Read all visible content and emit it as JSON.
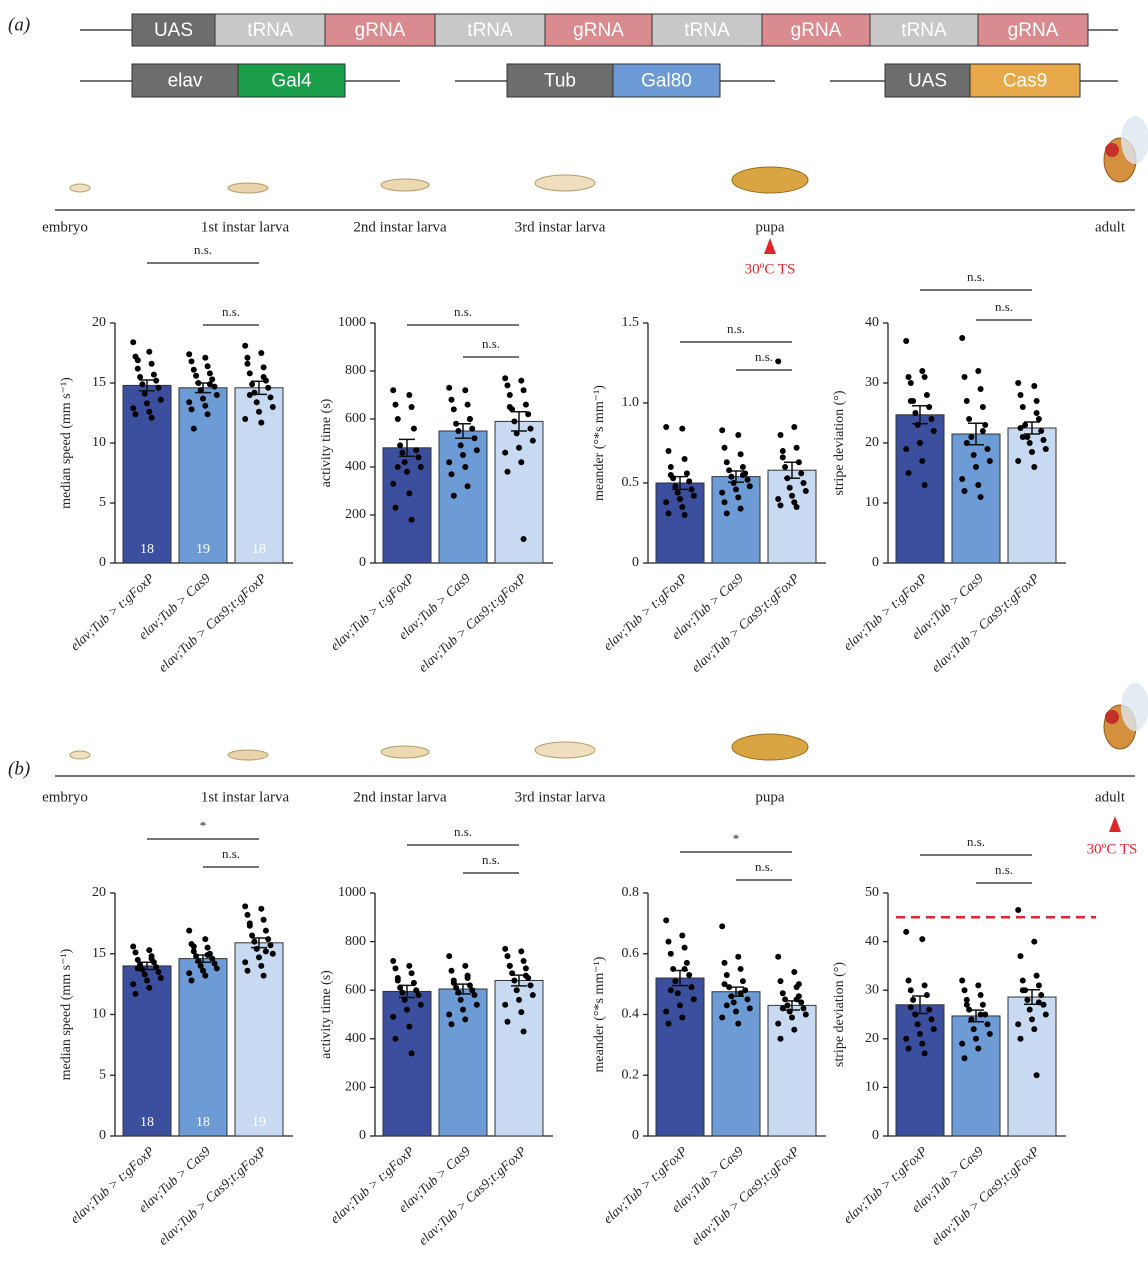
{
  "panel_labels": [
    "(a)",
    "(b)"
  ],
  "constructs": {
    "guide": [
      "UAS",
      "tRNA",
      "gRNA",
      "tRNA",
      "gRNA",
      "tRNA",
      "gRNA",
      "tRNA",
      "gRNA"
    ],
    "driver": [
      "elav",
      "Gal4"
    ],
    "repressor": [
      "Tub",
      "Gal80"
    ],
    "cas": [
      "UAS",
      "Cas9"
    ]
  },
  "timelines": [
    {
      "stages": [
        "embryo",
        "1st instar larva",
        "2nd instar larva",
        "3rd instar larva",
        "pupa",
        "adult"
      ],
      "shift": "30ºC TS"
    },
    {
      "stages": [
        "embryo",
        "1st instar larva",
        "2nd instar larva",
        "3rd instar larva",
        "pupa",
        "adult"
      ],
      "shift": "30ºC TS"
    }
  ],
  "chart_data": [
    {
      "type": "bar",
      "ylabel": "median speed (mm s⁻¹)",
      "categories": [
        "elav;Tub > t:gFoxP",
        "elav;Tub > Cas9",
        "elav;Tub > Cas9;t:gFoxP"
      ],
      "colors": [
        "#3b4f9e",
        "#6c9bd5",
        "#c8daf1"
      ],
      "values": [
        14.8,
        14.6,
        14.6
      ],
      "errors": [
        0.45,
        0.4,
        0.55
      ],
      "counts": [
        18,
        19,
        18
      ],
      "points": [
        [
          18.4,
          17.6,
          17.2,
          16.6,
          16.9,
          15.7,
          15.5,
          15.2,
          14.9,
          14.6,
          14.1,
          13.6,
          13.3,
          12.9,
          12.6,
          12.4,
          12.1,
          16.2
        ],
        [
          17.4,
          17.1,
          16.8,
          16.4,
          16.1,
          15.8,
          15.6,
          15.3,
          15.0,
          14.7,
          14.4,
          14.0,
          13.7,
          13.4,
          13.1,
          12.8,
          12.4,
          11.2,
          14.9
        ],
        [
          18.1,
          17.5,
          17.1,
          16.3,
          15.8,
          15.2,
          14.9,
          14.6,
          14.2,
          13.8,
          13.4,
          13.0,
          12.6,
          12.0,
          11.7,
          16.6,
          15.5,
          14.0
        ]
      ],
      "ylim": [
        0,
        20
      ],
      "yticks": [
        0,
        5,
        10,
        15,
        20
      ],
      "significance": [
        "n.s.",
        "n.s."
      ]
    },
    {
      "type": "bar",
      "ylabel": "activity time (s)",
      "categories": [
        "elav;Tub > t:gFoxP",
        "elav;Tub > Cas9",
        "elav;Tub > Cas9;t:gFoxP"
      ],
      "colors": [
        "#3b4f9e",
        "#6c9bd5",
        "#c8daf1"
      ],
      "values": [
        480,
        550,
        590
      ],
      "errors": [
        35,
        30,
        40
      ],
      "points": [
        [
          720,
          700,
          660,
          650,
          600,
          560,
          490,
          470,
          460,
          440,
          420,
          400,
          380,
          330,
          290,
          230,
          180,
          400
        ],
        [
          730,
          720,
          680,
          660,
          640,
          600,
          580,
          560,
          550,
          520,
          490,
          470,
          450,
          420,
          400,
          370,
          320,
          280,
          600
        ],
        [
          770,
          760,
          740,
          720,
          700,
          660,
          640,
          620,
          590,
          560,
          540,
          510,
          480,
          460,
          420,
          380,
          100,
          650
        ]
      ],
      "ylim": [
        0,
        1000
      ],
      "yticks": [
        0,
        200,
        400,
        600,
        800,
        1000
      ],
      "significance": [
        "n.s.",
        "n.s."
      ]
    },
    {
      "type": "bar",
      "ylabel": "meander (°*s mm⁻¹)",
      "categories": [
        "elav;Tub > t:gFoxP",
        "elav;Tub > Cas9",
        "elav;Tub > Cas9;t:gFoxP"
      ],
      "colors": [
        "#3b4f9e",
        "#6c9bd5",
        "#c8daf1"
      ],
      "values": [
        0.5,
        0.54,
        0.58
      ],
      "errors": [
        0.04,
        0.035,
        0.05
      ],
      "points": [
        [
          0.85,
          0.84,
          0.7,
          0.65,
          0.6,
          0.56,
          0.53,
          0.51,
          0.48,
          0.46,
          0.44,
          0.42,
          0.4,
          0.38,
          0.35,
          0.31,
          0.3,
          0.55
        ],
        [
          0.83,
          0.8,
          0.72,
          0.68,
          0.63,
          0.6,
          0.58,
          0.56,
          0.54,
          0.52,
          0.5,
          0.48,
          0.46,
          0.44,
          0.41,
          0.38,
          0.34,
          0.31,
          0.55
        ],
        [
          1.26,
          0.85,
          0.8,
          0.72,
          0.66,
          0.63,
          0.6,
          0.56,
          0.53,
          0.5,
          0.47,
          0.45,
          0.42,
          0.4,
          0.38,
          0.36,
          0.35,
          0.7
        ]
      ],
      "ylim": [
        0,
        1.5
      ],
      "yticks": [
        0,
        0.5,
        {
          "value": 1,
          "label": "1.0"
        },
        1.5
      ],
      "significance": [
        "n.s.",
        "n.s."
      ]
    },
    {
      "type": "bar",
      "ylabel": "stripe deviation (°)",
      "categories": [
        "elav;Tub > t:gFoxP",
        "elav;Tub > Cas9",
        "elav;Tub > Cas9;t:gFoxP"
      ],
      "colors": [
        "#3b4f9e",
        "#6c9bd5",
        "#c8daf1"
      ],
      "values": [
        24.7,
        21.5,
        22.5
      ],
      "errors": [
        1.5,
        1.8,
        1.0
      ],
      "points": [
        [
          37,
          32,
          31,
          31,
          30,
          28,
          27,
          26,
          25,
          24,
          23,
          22,
          20,
          19,
          17,
          15,
          13,
          27
        ],
        [
          37.5,
          32,
          31,
          29,
          27,
          26,
          24,
          23,
          21,
          19,
          18,
          17,
          16,
          14,
          13,
          12,
          11,
          20,
          22
        ],
        [
          30,
          29.5,
          28,
          27,
          26,
          24,
          23,
          22,
          21,
          20.5,
          20,
          19,
          18.5,
          17,
          16,
          22.5,
          25,
          21
        ]
      ],
      "ylim": [
        0,
        40
      ],
      "yticks": [
        0,
        10,
        20,
        30,
        40
      ],
      "significance": [
        "n.s.",
        "n.s."
      ]
    },
    {
      "type": "bar",
      "ylabel": "median speed (mm s⁻¹)",
      "categories": [
        "elav;Tub > t:gFoxP",
        "elav;Tub > Cas9",
        "elav;Tub > Cas9;t:gFoxP"
      ],
      "colors": [
        "#3b4f9e",
        "#6c9bd5",
        "#c8daf1"
      ],
      "values": [
        14.0,
        14.6,
        15.9
      ],
      "errors": [
        0.3,
        0.3,
        0.4
      ],
      "counts": [
        18,
        18,
        19
      ],
      "points": [
        [
          15.6,
          15.3,
          15.1,
          14.8,
          14.5,
          14.3,
          14.1,
          13.9,
          13.7,
          13.5,
          13.3,
          13.0,
          12.8,
          12.5,
          12.2,
          11.7,
          14.6,
          13.8
        ],
        [
          16.9,
          16.2,
          15.8,
          15.5,
          15.2,
          15.0,
          14.8,
          14.6,
          14.4,
          14.2,
          14.0,
          13.8,
          13.6,
          13.4,
          13.2,
          12.8,
          14.9,
          15.6
        ],
        [
          18.9,
          18.7,
          18.2,
          17.8,
          17.3,
          16.9,
          16.5,
          16.2,
          16.0,
          15.7,
          15.4,
          15.0,
          14.7,
          14.3,
          14.0,
          13.6,
          13.2,
          17.5,
          15.2
        ]
      ],
      "ylim": [
        0,
        20
      ],
      "yticks": [
        0,
        5,
        10,
        15,
        20
      ],
      "significance": [
        "*",
        "n.s."
      ]
    },
    {
      "type": "bar",
      "ylabel": "activity time (s)",
      "categories": [
        "elav;Tub > t:gFoxP",
        "elav;Tub > Cas9",
        "elav;Tub > Cas9;t:gFoxP"
      ],
      "colors": [
        "#3b4f9e",
        "#6c9bd5",
        "#c8daf1"
      ],
      "values": [
        595,
        605,
        640
      ],
      "errors": [
        25,
        20,
        22
      ],
      "points": [
        [
          720,
          700,
          690,
          670,
          650,
          630,
          610,
          600,
          590,
          580,
          560,
          540,
          520,
          490,
          450,
          400,
          340,
          640
        ],
        [
          740,
          700,
          680,
          660,
          640,
          620,
          610,
          600,
          590,
          580,
          560,
          540,
          520,
          500,
          480,
          460,
          650,
          630
        ],
        [
          770,
          760,
          740,
          720,
          700,
          690,
          670,
          650,
          640,
          620,
          600,
          580,
          560,
          540,
          510,
          470,
          430,
          700,
          660
        ]
      ],
      "ylim": [
        0,
        1000
      ],
      "yticks": [
        0,
        200,
        400,
        600,
        800,
        1000
      ],
      "significance": [
        "n.s.",
        "n.s."
      ]
    },
    {
      "type": "bar",
      "ylabel": "meander (°*s mm⁻¹)",
      "categories": [
        "elav;Tub > t:gFoxP",
        "elav;Tub > Cas9",
        "elav;Tub > Cas9;t:gFoxP"
      ],
      "colors": [
        "#3b4f9e",
        "#6c9bd5",
        "#c8daf1"
      ],
      "values": [
        0.52,
        0.475,
        0.43
      ],
      "errors": [
        0.025,
        0.015,
        0.015
      ],
      "points": [
        [
          0.71,
          0.66,
          0.64,
          0.62,
          0.6,
          0.57,
          0.55,
          0.53,
          0.51,
          0.49,
          0.47,
          0.45,
          0.43,
          0.41,
          0.39,
          0.37,
          0.55,
          0.48
        ],
        [
          0.69,
          0.59,
          0.57,
          0.55,
          0.53,
          0.51,
          0.49,
          0.48,
          0.46,
          0.45,
          0.44,
          0.42,
          0.41,
          0.39,
          0.37,
          0.5,
          0.47,
          0.43
        ],
        [
          0.59,
          0.54,
          0.51,
          0.49,
          0.47,
          0.46,
          0.45,
          0.44,
          0.43,
          0.42,
          0.41,
          0.4,
          0.39,
          0.37,
          0.35,
          0.32,
          0.45,
          0.42,
          0.5
        ]
      ],
      "ylim": [
        0,
        0.8
      ],
      "yticks": [
        0,
        0.2,
        0.4,
        0.6,
        0.8
      ],
      "significance": [
        "*",
        "n.s."
      ]
    },
    {
      "type": "bar",
      "ylabel": "stripe deviation (°)",
      "categories": [
        "elav;Tub > t:gFoxP",
        "elav;Tub > Cas9",
        "elav;Tub > Cas9;t:gFoxP"
      ],
      "colors": [
        "#3b4f9e",
        "#6c9bd5",
        "#c8daf1"
      ],
      "values": [
        27,
        24.7,
        28.6
      ],
      "errors": [
        1.8,
        1.2,
        1.5
      ],
      "reference_line": 45,
      "reference_color": "#e0262b",
      "points": [
        [
          42,
          40.5,
          32,
          31,
          30,
          29,
          28,
          26,
          25,
          24,
          23,
          22,
          21,
          20,
          19,
          18,
          17,
          26.5
        ],
        [
          32,
          31,
          30,
          29,
          28,
          27,
          26,
          25,
          24,
          23,
          22,
          21,
          20,
          19,
          18,
          16,
          25,
          27
        ],
        [
          46.5,
          40,
          37,
          33,
          32,
          31,
          30,
          29,
          28,
          27,
          26,
          25,
          24,
          23,
          22,
          20,
          12.5,
          30,
          27.5
        ]
      ],
      "ylim": [
        0,
        50
      ],
      "yticks": [
        0,
        10,
        20,
        30,
        40,
        50
      ],
      "significance": [
        "n.s.",
        "n.s."
      ]
    }
  ]
}
